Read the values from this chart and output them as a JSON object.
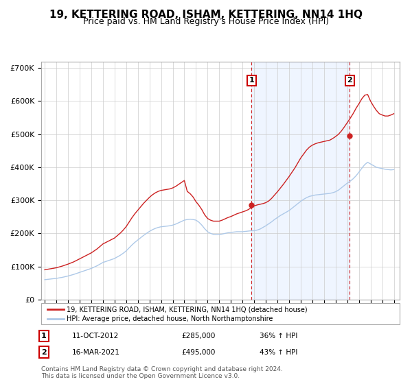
{
  "title": "19, KETTERING ROAD, ISHAM, KETTERING, NN14 1HQ",
  "subtitle": "Price paid vs. HM Land Registry's House Price Index (HPI)",
  "title_fontsize": 11,
  "subtitle_fontsize": 9,
  "ylabel_ticks": [
    "£0",
    "£100K",
    "£200K",
    "£300K",
    "£400K",
    "£500K",
    "£600K",
    "£700K"
  ],
  "ytick_values": [
    0,
    100000,
    200000,
    300000,
    400000,
    500000,
    600000,
    700000
  ],
  "ylim": [
    0,
    720000
  ],
  "xlim_start": 1994.7,
  "xlim_end": 2025.5,
  "sale1_date": 2012.78,
  "sale1_price": 285000,
  "sale1_label": "1",
  "sale2_date": 2021.21,
  "sale2_price": 495000,
  "sale2_label": "2",
  "legend_line1": "19, KETTERING ROAD, ISHAM, KETTERING, NN14 1HQ (detached house)",
  "legend_line2": "HPI: Average price, detached house, North Northamptonshire",
  "footnote": "Contains HM Land Registry data © Crown copyright and database right 2024.\nThis data is licensed under the Open Government Licence v3.0.",
  "hpi_color": "#aec9e8",
  "price_color": "#cc2222",
  "sale_marker_color": "#cc2222",
  "grid_color": "#cccccc",
  "background_color": "#ffffff",
  "box_color": "#cc0000",
  "shade_color": "#ddeeff",
  "years": [
    1995.0,
    1995.25,
    1995.5,
    1995.75,
    1996.0,
    1996.25,
    1996.5,
    1996.75,
    1997.0,
    1997.25,
    1997.5,
    1997.75,
    1998.0,
    1998.25,
    1998.5,
    1998.75,
    1999.0,
    1999.25,
    1999.5,
    1999.75,
    2000.0,
    2000.25,
    2000.5,
    2000.75,
    2001.0,
    2001.25,
    2001.5,
    2001.75,
    2002.0,
    2002.25,
    2002.5,
    2002.75,
    2003.0,
    2003.25,
    2003.5,
    2003.75,
    2004.0,
    2004.25,
    2004.5,
    2004.75,
    2005.0,
    2005.25,
    2005.5,
    2005.75,
    2006.0,
    2006.25,
    2006.5,
    2006.75,
    2007.0,
    2007.25,
    2007.5,
    2007.75,
    2008.0,
    2008.25,
    2008.5,
    2008.75,
    2009.0,
    2009.25,
    2009.5,
    2009.75,
    2010.0,
    2010.25,
    2010.5,
    2010.75,
    2011.0,
    2011.25,
    2011.5,
    2011.75,
    2012.0,
    2012.25,
    2012.5,
    2012.75,
    2013.0,
    2013.25,
    2013.5,
    2013.75,
    2014.0,
    2014.25,
    2014.5,
    2014.75,
    2015.0,
    2015.25,
    2015.5,
    2015.75,
    2016.0,
    2016.25,
    2016.5,
    2016.75,
    2017.0,
    2017.25,
    2017.5,
    2017.75,
    2018.0,
    2018.25,
    2018.5,
    2018.75,
    2019.0,
    2019.25,
    2019.5,
    2019.75,
    2020.0,
    2020.25,
    2020.5,
    2020.75,
    2021.0,
    2021.25,
    2021.5,
    2021.75,
    2022.0,
    2022.25,
    2022.5,
    2022.75,
    2023.0,
    2023.25,
    2023.5,
    2023.75,
    2024.0,
    2024.25,
    2024.5,
    2024.75,
    2025.0
  ],
  "hpi_values": [
    60000,
    61000,
    62000,
    63000,
    64000,
    65500,
    67000,
    69000,
    71000,
    73500,
    76000,
    79000,
    82000,
    85000,
    88000,
    91000,
    94000,
    98000,
    102000,
    107000,
    112000,
    115000,
    118000,
    121000,
    124000,
    129000,
    134000,
    140000,
    147000,
    156000,
    165000,
    173000,
    180000,
    187000,
    194000,
    200000,
    206000,
    211000,
    215000,
    218000,
    220000,
    221000,
    222000,
    223000,
    225000,
    228000,
    232000,
    236000,
    240000,
    242000,
    243000,
    242000,
    240000,
    234000,
    225000,
    214000,
    205000,
    200000,
    197000,
    196000,
    196000,
    198000,
    200000,
    202000,
    203000,
    204000,
    205000,
    205000,
    205000,
    206000,
    207000,
    208000,
    208000,
    210000,
    213000,
    218000,
    223000,
    229000,
    235000,
    242000,
    248000,
    254000,
    259000,
    264000,
    269000,
    276000,
    283000,
    290000,
    297000,
    303000,
    308000,
    312000,
    314000,
    316000,
    317000,
    318000,
    319000,
    320000,
    321000,
    323000,
    326000,
    331000,
    338000,
    345000,
    352000,
    358000,
    365000,
    374000,
    385000,
    397000,
    408000,
    415000,
    410000,
    405000,
    400000,
    398000,
    396000,
    394000,
    393000,
    392000,
    393000
  ],
  "price_values": [
    90000,
    91500,
    93000,
    94500,
    96000,
    98500,
    101000,
    104000,
    107000,
    110500,
    114000,
    118500,
    123000,
    127500,
    132000,
    136500,
    141000,
    147000,
    153000,
    160500,
    168000,
    172500,
    177000,
    181500,
    186000,
    193500,
    201000,
    210000,
    220500,
    234000,
    247500,
    259500,
    270000,
    280500,
    291000,
    300000,
    309000,
    316500,
    322500,
    327000,
    330000,
    331500,
    333000,
    334500,
    337500,
    342000,
    348000,
    354000,
    360000,
    327000,
    320000,
    310000,
    296000,
    285000,
    272000,
    256000,
    245000,
    240000,
    237000,
    237000,
    237000,
    240000,
    244000,
    248000,
    251000,
    255000,
    259000,
    262000,
    265000,
    268000,
    272000,
    278000,
    283000,
    286000,
    288000,
    290000,
    293000,
    298000,
    306000,
    316000,
    326000,
    337000,
    348000,
    360000,
    372000,
    385000,
    398000,
    413000,
    428000,
    440000,
    452000,
    461000,
    467000,
    471000,
    474000,
    476000,
    478000,
    480000,
    482000,
    487000,
    493000,
    500000,
    510000,
    522000,
    535000,
    548000,
    562000,
    578000,
    592000,
    607000,
    618000,
    620000,
    600000,
    585000,
    572000,
    562000,
    558000,
    555000,
    555000,
    558000,
    562000
  ]
}
